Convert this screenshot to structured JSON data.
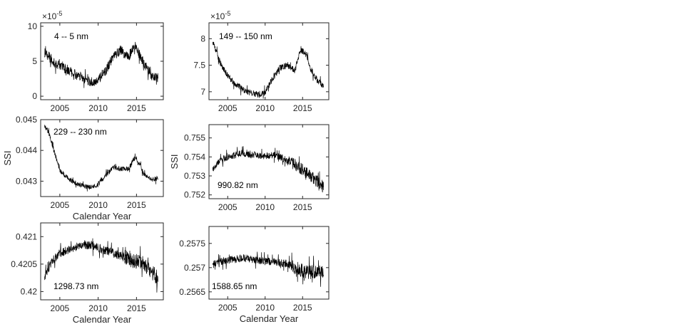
{
  "chart_data": [
    {
      "type": "line",
      "annotation": "4 -- 5 nm",
      "ylabel": "",
      "xlabel": "",
      "exponent_label": "×10-5",
      "xlim": [
        2002.5,
        2018.5
      ],
      "ylim": [
        -0.5,
        10.5
      ],
      "xticks": [
        2005,
        2010,
        2015
      ],
      "xtick_labels": [
        "2005",
        "2010",
        "2015"
      ],
      "yticks": [
        0,
        5,
        10
      ],
      "ytick_labels": [
        "0",
        "5",
        "10"
      ],
      "x": [
        2003,
        2003.5,
        2004,
        2005,
        2006,
        2007,
        2008,
        2009,
        2010,
        2011,
        2012,
        2013,
        2014,
        2014.7,
        2015.5,
        2016,
        2017,
        2017.8
      ],
      "y": [
        6.2,
        5.8,
        5.0,
        4.3,
        3.8,
        3.1,
        2.7,
        2.0,
        2.3,
        3.6,
        5.8,
        6.5,
        5.5,
        7.5,
        5.7,
        4.6,
        2.9,
        2.7
      ],
      "noise": 0.7
    },
    {
      "type": "line",
      "annotation": "149 -- 150 nm",
      "ylabel": "",
      "xlabel": "",
      "exponent_label": "×10-5",
      "xlim": [
        2002.5,
        2018.5
      ],
      "ylim": [
        6.85,
        8.3
      ],
      "xticks": [
        2005,
        2010,
        2015
      ],
      "xtick_labels": [
        "2005",
        "2010",
        "2015"
      ],
      "yticks": [
        7,
        7.5,
        8
      ],
      "ytick_labels": [
        "7",
        "7.5",
        "8"
      ],
      "x": [
        2003,
        2003.5,
        2004,
        2005,
        2006,
        2007,
        2008,
        2009,
        2010,
        2011,
        2012,
        2013,
        2014,
        2014.7,
        2015.5,
        2016,
        2017,
        2017.8
      ],
      "y": [
        7.95,
        7.75,
        7.55,
        7.3,
        7.15,
        7.05,
        6.98,
        6.95,
        6.98,
        7.25,
        7.45,
        7.5,
        7.4,
        7.8,
        7.7,
        7.45,
        7.2,
        7.1
      ],
      "noise": 0.06
    },
    {
      "type": "line",
      "annotation": "229 -- 230 nm",
      "ylabel": "SSI",
      "xlabel": "Calendar Year",
      "exponent_label": "",
      "xlim": [
        2002.5,
        2018.5
      ],
      "ylim": [
        0.0425,
        0.045
      ],
      "xticks": [
        2005,
        2010,
        2015
      ],
      "xtick_labels": [
        "2005",
        "2010",
        "2015"
      ],
      "yticks": [
        0.043,
        0.044,
        0.045
      ],
      "ytick_labels": [
        "0.043",
        "0.044",
        "0.045"
      ],
      "x": [
        2003,
        2003.5,
        2004,
        2005,
        2006,
        2007,
        2008,
        2009,
        2010,
        2011,
        2012,
        2013,
        2014,
        2014.7,
        2015.5,
        2016,
        2017,
        2017.8
      ],
      "y": [
        0.0448,
        0.0446,
        0.0442,
        0.04335,
        0.0431,
        0.04295,
        0.04285,
        0.0428,
        0.0429,
        0.0432,
        0.04345,
        0.0434,
        0.0434,
        0.04375,
        0.0435,
        0.0432,
        0.04305,
        0.0431
      ],
      "noise": 8e-05
    },
    {
      "type": "line",
      "annotation": "990.82 nm",
      "ylabel": "SSI",
      "xlabel": "",
      "exponent_label": "",
      "xlim": [
        2002.5,
        2018.5
      ],
      "ylim": [
        0.7518,
        0.7557
      ],
      "xticks": [
        2005,
        2010,
        2015
      ],
      "xtick_labels": [
        "2005",
        "2010",
        "2015"
      ],
      "yticks": [
        0.752,
        0.753,
        0.754,
        0.755
      ],
      "ytick_labels": [
        "0.752",
        "0.753",
        "0.754",
        "0.755"
      ],
      "x": [
        2003,
        2003.5,
        2004,
        2005,
        2006,
        2007,
        2008,
        2009,
        2010,
        2011,
        2012,
        2013,
        2014,
        2015,
        2016,
        2017,
        2017.8
      ],
      "y": [
        0.7533,
        0.7536,
        0.7538,
        0.754,
        0.7541,
        0.7542,
        0.7541,
        0.7541,
        0.754,
        0.7541,
        0.754,
        0.7538,
        0.7536,
        0.7533,
        0.753,
        0.7527,
        0.7524
      ],
      "noise": 0.00018
    },
    {
      "type": "line",
      "annotation": "1298.73 nm",
      "ylabel": "",
      "xlabel": "Calendar Year",
      "exponent_label": "",
      "xlim": [
        2002.5,
        2018.5
      ],
      "ylim": [
        0.41985,
        0.42125
      ],
      "xticks": [
        2005,
        2010,
        2015
      ],
      "xtick_labels": [
        "2005",
        "2010",
        "2015"
      ],
      "yticks": [
        0.42,
        0.4205,
        0.421
      ],
      "ytick_labels": [
        "0.42",
        "0.4205",
        "0.421"
      ],
      "x": [
        2003,
        2003.5,
        2004,
        2005,
        2006,
        2007,
        2008,
        2009,
        2010,
        2011,
        2012,
        2013,
        2014,
        2015,
        2016,
        2017,
        2017.8
      ],
      "y": [
        0.42025,
        0.4204,
        0.42055,
        0.4207,
        0.42075,
        0.4208,
        0.42085,
        0.42085,
        0.4208,
        0.42075,
        0.4207,
        0.42065,
        0.4206,
        0.42055,
        0.4205,
        0.42035,
        0.42025
      ],
      "noise": 8e-05
    },
    {
      "type": "line",
      "annotation": "1588.65 nm",
      "ylabel": "",
      "xlabel": "Calendar Year",
      "exponent_label": "",
      "xlim": [
        2002.5,
        2018.5
      ],
      "ylim": [
        0.25635,
        0.25785
      ],
      "xticks": [
        2005,
        2010,
        2015
      ],
      "xtick_labels": [
        "2005",
        "2010",
        "2015"
      ],
      "yticks": [
        0.2565,
        0.257,
        0.2575
      ],
      "ytick_labels": [
        "0.2565",
        "0.257",
        "0.2575"
      ],
      "x": [
        2003,
        2003.5,
        2004,
        2005,
        2006,
        2007,
        2008,
        2009,
        2010,
        2011,
        2012,
        2013,
        2014,
        2015,
        2016,
        2017,
        2017.8
      ],
      "y": [
        0.25705,
        0.2571,
        0.25712,
        0.25715,
        0.25717,
        0.2572,
        0.25718,
        0.25715,
        0.25713,
        0.25712,
        0.2571,
        0.25708,
        0.257,
        0.25693,
        0.2569,
        0.2569,
        0.25692
      ],
      "noise": 8e-05
    }
  ]
}
